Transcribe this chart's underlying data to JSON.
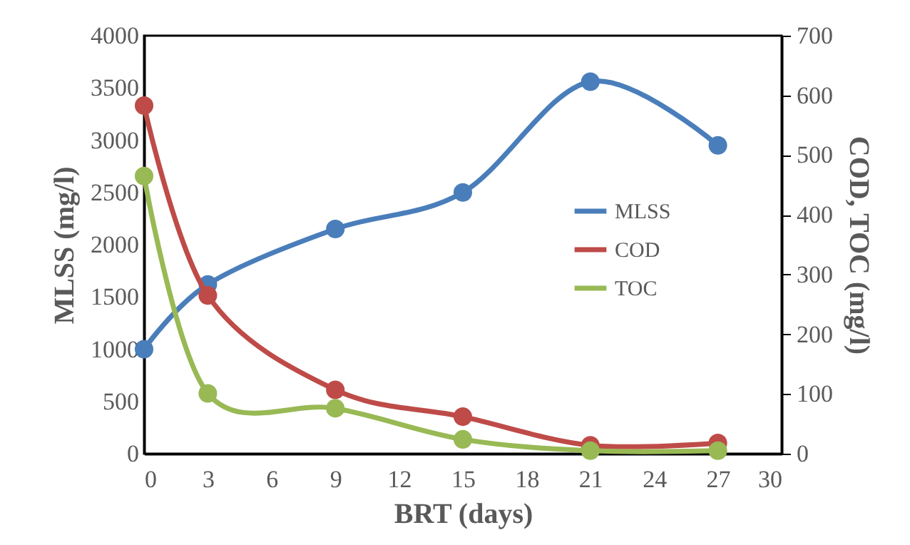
{
  "chart_data": {
    "type": "line",
    "xlabel": "BRT (days)",
    "ylabel": "MLSS (mg/l)",
    "y2label": "COD, TOC (mg/l)",
    "x": [
      0,
      3,
      9,
      15,
      21,
      27
    ],
    "series": [
      {
        "name": "MLSS",
        "color": "#4a7ebb",
        "values": [
          1000,
          1620,
          2150,
          2500,
          3560,
          2950
        ]
      },
      {
        "name": "COD",
        "color": "#be4b48",
        "axis": "y2",
        "values": [
          583,
          265,
          107,
          62,
          14,
          18
        ]
      },
      {
        "name": "TOC",
        "color": "#98b954",
        "axis": "y2",
        "values": [
          465,
          101,
          76,
          24,
          5,
          5
        ]
      }
    ],
    "xlim": [
      0,
      30
    ],
    "xticks": [
      0,
      3,
      6,
      9,
      12,
      15,
      18,
      21,
      24,
      27,
      30
    ],
    "ylim": [
      0,
      4000
    ],
    "yticks": [
      0,
      500,
      1000,
      1500,
      2000,
      2500,
      3000,
      3500,
      4000
    ],
    "y2lim": [
      0,
      700
    ],
    "y2ticks": [
      0,
      100,
      200,
      300,
      400,
      500,
      600,
      700
    ],
    "grid": false,
    "legend": "right",
    "marker": "circle",
    "line_style": "solid"
  }
}
